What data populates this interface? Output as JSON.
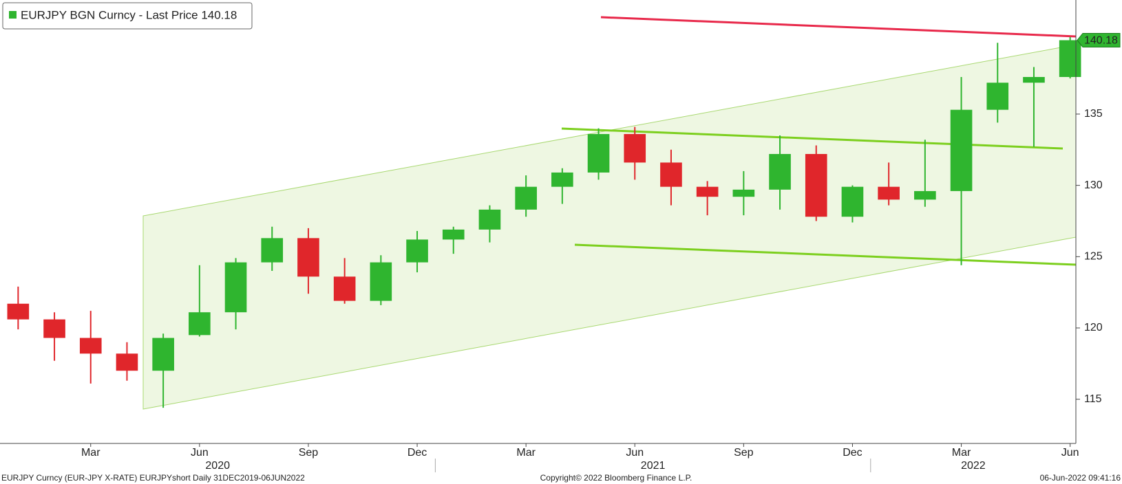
{
  "chart_data": {
    "type": "candlestick",
    "x": [
      "2020-01",
      "2020-02",
      "2020-03",
      "2020-04",
      "2020-05",
      "2020-06",
      "2020-07",
      "2020-08",
      "2020-09",
      "2020-10",
      "2020-11",
      "2020-12",
      "2021-01",
      "2021-02",
      "2021-03",
      "2021-04",
      "2021-05",
      "2021-06",
      "2021-07",
      "2021-08",
      "2021-09",
      "2021-10",
      "2021-11",
      "2021-12",
      "2022-01",
      "2022-02",
      "2022-03",
      "2022-04",
      "2022-05",
      "2022-06"
    ],
    "series": [
      {
        "name": "EURJPY BGN Curncy - Last Price 140.18",
        "color": "#2fb52f",
        "down_color": "#e0262b",
        "open": [
          121.7,
          120.6,
          119.3,
          118.2,
          117.0,
          119.5,
          121.1,
          124.6,
          126.3,
          123.6,
          121.9,
          124.6,
          126.2,
          126.9,
          128.3,
          129.9,
          130.9,
          133.6,
          131.6,
          129.9,
          129.2,
          129.7,
          132.2,
          127.8,
          129.9,
          129.0,
          129.6,
          135.3,
          137.2,
          137.6
        ],
        "high": [
          122.9,
          121.1,
          121.2,
          119.0,
          119.6,
          124.4,
          124.9,
          127.1,
          127.0,
          124.9,
          125.1,
          126.8,
          127.1,
          128.6,
          130.7,
          131.2,
          134.0,
          134.1,
          132.5,
          130.3,
          131.0,
          133.5,
          132.8,
          130.0,
          131.6,
          133.2,
          137.6,
          140.0,
          138.3,
          140.4
        ],
        "low": [
          119.9,
          117.7,
          116.1,
          116.3,
          114.4,
          119.4,
          119.9,
          124.0,
          122.4,
          121.7,
          121.6,
          123.9,
          125.2,
          126.0,
          127.8,
          128.7,
          130.4,
          130.4,
          128.6,
          127.9,
          127.9,
          128.3,
          127.5,
          127.4,
          128.6,
          128.5,
          124.4,
          134.4,
          132.7,
          137.5
        ],
        "close": [
          120.6,
          119.3,
          118.2,
          117.0,
          119.3,
          121.1,
          124.6,
          126.3,
          123.6,
          121.9,
          124.6,
          126.2,
          126.9,
          128.3,
          129.9,
          130.9,
          133.6,
          131.6,
          129.9,
          129.2,
          129.7,
          132.2,
          127.8,
          129.9,
          129.0,
          129.6,
          135.3,
          137.2,
          137.6,
          140.18
        ]
      }
    ],
    "ylim": [
      111.9,
      143
    ],
    "yticks": [
      115,
      120,
      125,
      130,
      135
    ],
    "xticks": [
      {
        "value": "2020-03",
        "label": "Mar"
      },
      {
        "value": "2020-06",
        "label": "Jun"
      },
      {
        "value": "2020-09",
        "label": "Sep"
      },
      {
        "value": "2020-12",
        "label": "Dec"
      },
      {
        "value": "2021-03",
        "label": "Mar"
      },
      {
        "value": "2021-06",
        "label": "Jun"
      },
      {
        "value": "2021-09",
        "label": "Sep"
      },
      {
        "value": "2021-12",
        "label": "Dec"
      },
      {
        "value": "2022-03",
        "label": "Mar"
      },
      {
        "value": "2022-06",
        "label": "Jun"
      }
    ],
    "year_labels": [
      "2020",
      "2021",
      "2022"
    ],
    "footer": {
      "left": "EURJPY Curncy (EUR-JPY X-RATE) EURJPYshort  Daily 31DEC2019-06JUN2022",
      "center": "Copyright© 2022 Bloomberg Finance L.P.",
      "right": "06-Jun-2022 09:41:16"
    }
  }
}
